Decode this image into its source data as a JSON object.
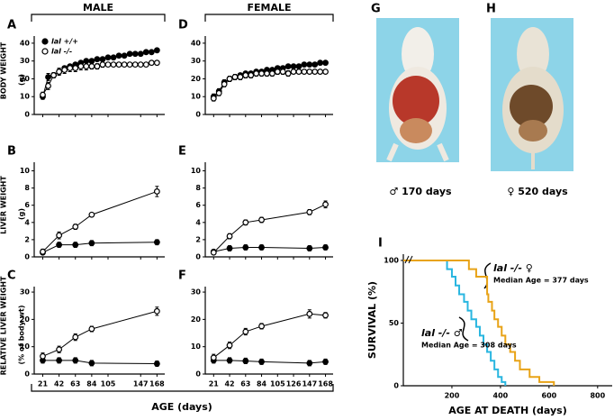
{
  "figure": {
    "column_titles": [
      "MALE",
      "FEMALE"
    ],
    "x_label": "AGE (days)",
    "photos": [
      {
        "panel": "G",
        "caption": "♂ 170 days"
      },
      {
        "panel": "H",
        "caption": "♀ 520 days"
      }
    ]
  },
  "chart_data": [
    {
      "type": "line",
      "panel": "A",
      "ylabel": [
        "BODY WEIGHT",
        "(g)"
      ],
      "x": [
        21,
        28,
        35,
        42,
        49,
        56,
        63,
        70,
        77,
        84,
        91,
        98,
        105,
        112,
        119,
        126,
        133,
        140,
        147,
        154,
        161,
        168
      ],
      "xlim": [
        10,
        178
      ],
      "xticks": [
        21,
        42,
        63,
        84,
        105,
        147,
        168
      ],
      "xtick_labels": false,
      "ylim": [
        0,
        44
      ],
      "yticks": [
        0,
        10,
        20,
        30,
        40
      ],
      "legend": "upper left",
      "series": [
        {
          "name": "lal +/+",
          "color": "#000000",
          "marker_fill": "#000000",
          "values": [
            10,
            21,
            22,
            24,
            26,
            27,
            28,
            29,
            30,
            30,
            31,
            31,
            32,
            32,
            33,
            33,
            34,
            34,
            34,
            35,
            35,
            36
          ],
          "errors": [
            1.5,
            2,
            1.5,
            1.5,
            1,
            1,
            1,
            1,
            1,
            1,
            1,
            1,
            1,
            1,
            1,
            1,
            1,
            1,
            1,
            1,
            1,
            1
          ]
        },
        {
          "name": "lal -/-",
          "color": "#000000",
          "marker_fill": "#ffffff",
          "values": [
            11,
            16,
            22,
            24,
            25,
            26,
            26,
            27,
            27,
            27,
            27,
            28,
            28,
            28,
            28,
            28,
            28,
            28,
            28,
            28,
            29,
            29
          ],
          "errors": [
            1.5,
            2,
            1.5,
            2,
            2,
            2,
            2,
            2,
            2,
            1.5,
            1.5,
            1.5,
            1,
            1,
            1,
            1,
            1,
            1,
            1,
            1,
            1,
            1
          ]
        }
      ]
    },
    {
      "type": "line",
      "panel": "B",
      "ylabel": [
        "LIVER WEIGHT",
        "(g)"
      ],
      "x": [
        21,
        42,
        63,
        84,
        168
      ],
      "xlim": [
        10,
        178
      ],
      "xticks": [
        21,
        42,
        63,
        84,
        105,
        147,
        168
      ],
      "xtick_labels": false,
      "ylim": [
        0,
        11
      ],
      "yticks": [
        0,
        2,
        4,
        6,
        8,
        10
      ],
      "series": [
        {
          "color": "#000000",
          "marker_fill": "#000000",
          "values": [
            0.5,
            1.4,
            1.4,
            1.6,
            1.7
          ],
          "errors": [
            0.2,
            0.3,
            0.3,
            0.3,
            0.3
          ]
        },
        {
          "color": "#000000",
          "marker_fill": "#ffffff",
          "values": [
            0.6,
            2.5,
            3.5,
            4.9,
            7.6
          ],
          "errors": [
            0.3,
            0.4,
            0.3,
            0.2,
            0.6
          ]
        }
      ]
    },
    {
      "type": "line",
      "panel": "C",
      "ylabel": [
        "RELATIVE LIVER WEIGHT",
        "(% of body wt)"
      ],
      "x": [
        21,
        42,
        63,
        84,
        168
      ],
      "xlim": [
        10,
        178
      ],
      "xticks": [
        21,
        42,
        63,
        84,
        105,
        147,
        168
      ],
      "ylim": [
        0,
        32
      ],
      "yticks": [
        0,
        10,
        20,
        30
      ],
      "series": [
        {
          "color": "#000000",
          "marker_fill": "#000000",
          "values": [
            5,
            5,
            5,
            4,
            3.8
          ],
          "errors": [
            1,
            1,
            1,
            1,
            1
          ]
        },
        {
          "color": "#000000",
          "marker_fill": "#ffffff",
          "values": [
            6.5,
            9,
            13.5,
            16.5,
            23
          ],
          "errors": [
            1.2,
            1.2,
            1.2,
            1,
            1.5
          ]
        }
      ]
    },
    {
      "type": "line",
      "panel": "D",
      "x": [
        21,
        28,
        35,
        42,
        49,
        56,
        63,
        70,
        77,
        84,
        91,
        98,
        105,
        112,
        119,
        126,
        133,
        140,
        147,
        154,
        161,
        168
      ],
      "xlim": [
        10,
        178
      ],
      "xticks": [
        21,
        42,
        63,
        84,
        105,
        126,
        147,
        168
      ],
      "xtick_labels": false,
      "ylim": [
        0,
        44
      ],
      "yticks": [
        0,
        10,
        20,
        30,
        40
      ],
      "series": [
        {
          "color": "#000000",
          "marker_fill": "#000000",
          "values": [
            10,
            13,
            18,
            20,
            21,
            22,
            23,
            23,
            24,
            24,
            25,
            25,
            26,
            26,
            27,
            27,
            27,
            28,
            28,
            28,
            29,
            29
          ],
          "errors": [
            1.5,
            1.5,
            1.5,
            1.5,
            1,
            1,
            1,
            1,
            1,
            1,
            1,
            1,
            1,
            1,
            1,
            1,
            1,
            1,
            1,
            1,
            1,
            1
          ]
        },
        {
          "color": "#000000",
          "marker_fill": "#ffffff",
          "values": [
            9,
            12,
            17,
            20,
            21,
            21,
            22,
            22,
            23,
            23,
            23,
            23,
            24,
            24,
            23,
            24,
            24,
            24,
            24,
            24,
            24,
            24
          ],
          "errors": [
            1.5,
            1.5,
            1.5,
            1.5,
            1.5,
            1.5,
            1.5,
            1.5,
            1.5,
            1.5,
            1.5,
            1.5,
            1.5,
            1.5,
            1.5,
            1,
            1,
            1,
            1,
            1,
            1,
            1
          ]
        }
      ]
    },
    {
      "type": "line",
      "panel": "E",
      "x": [
        21,
        42,
        63,
        84,
        147,
        168
      ],
      "xlim": [
        10,
        178
      ],
      "xticks": [
        21,
        42,
        63,
        84,
        105,
        126,
        147,
        168
      ],
      "xtick_labels": false,
      "ylim": [
        0,
        11
      ],
      "yticks": [
        0,
        2,
        4,
        6,
        8,
        10
      ],
      "series": [
        {
          "color": "#000000",
          "marker_fill": "#000000",
          "values": [
            0.6,
            1.0,
            1.1,
            1.1,
            1.0,
            1.1
          ],
          "errors": [
            0.2,
            0.3,
            0.3,
            0.3,
            0.3,
            0.3
          ]
        },
        {
          "color": "#000000",
          "marker_fill": "#ffffff",
          "values": [
            0.5,
            2.4,
            4.0,
            4.3,
            5.2,
            6.1
          ],
          "errors": [
            0.2,
            0.3,
            0.3,
            0.3,
            0.3,
            0.4
          ]
        }
      ]
    },
    {
      "type": "line",
      "panel": "F",
      "x": [
        21,
        42,
        63,
        84,
        147,
        168
      ],
      "xlim": [
        10,
        178
      ],
      "xticks": [
        21,
        42,
        63,
        84,
        105,
        126,
        147,
        168
      ],
      "ylim": [
        0,
        32
      ],
      "yticks": [
        0,
        10,
        20,
        30
      ],
      "series": [
        {
          "color": "#000000",
          "marker_fill": "#000000",
          "values": [
            5,
            5,
            4.8,
            4.5,
            4,
            4.5
          ],
          "errors": [
            1,
            1,
            1,
            1,
            1,
            1
          ]
        },
        {
          "color": "#000000",
          "marker_fill": "#ffffff",
          "values": [
            6,
            10.5,
            15.5,
            17.5,
            22,
            21.5
          ],
          "errors": [
            1.2,
            1.2,
            1.2,
            1,
            1.5,
            1
          ]
        }
      ]
    },
    {
      "type": "step",
      "panel": "I",
      "ylabel": [
        "SURVIVAL (%)"
      ],
      "xlabel": "AGE AT DEATH (days)",
      "xlim": [
        0,
        860
      ],
      "xticks": [
        200,
        400,
        600,
        800
      ],
      "ylim": [
        0,
        105
      ],
      "yticks": [
        0,
        50,
        100
      ],
      "series": [
        {
          "color": "#29b6e0",
          "x": [
            0,
            180,
            200,
            215,
            230,
            250,
            265,
            280,
            300,
            315,
            330,
            345,
            360,
            375,
            390,
            405,
            420
          ],
          "values": [
            100,
            93,
            87,
            80,
            73,
            67,
            60,
            53,
            47,
            40,
            33,
            27,
            20,
            13,
            7,
            3,
            0
          ]
        },
        {
          "color": "#e8a317",
          "x": [
            0,
            270,
            300,
            345,
            350,
            365,
            375,
            390,
            405,
            420,
            440,
            460,
            480,
            520,
            560,
            620
          ],
          "values": [
            100,
            93,
            87,
            73,
            67,
            60,
            53,
            47,
            40,
            33,
            27,
            20,
            13,
            7,
            3,
            0
          ]
        }
      ],
      "annotations": [
        "lal -/- ♀",
        "Median Age = 377 days",
        "lal -/- ♂",
        "Median Age = 308 days"
      ]
    }
  ]
}
